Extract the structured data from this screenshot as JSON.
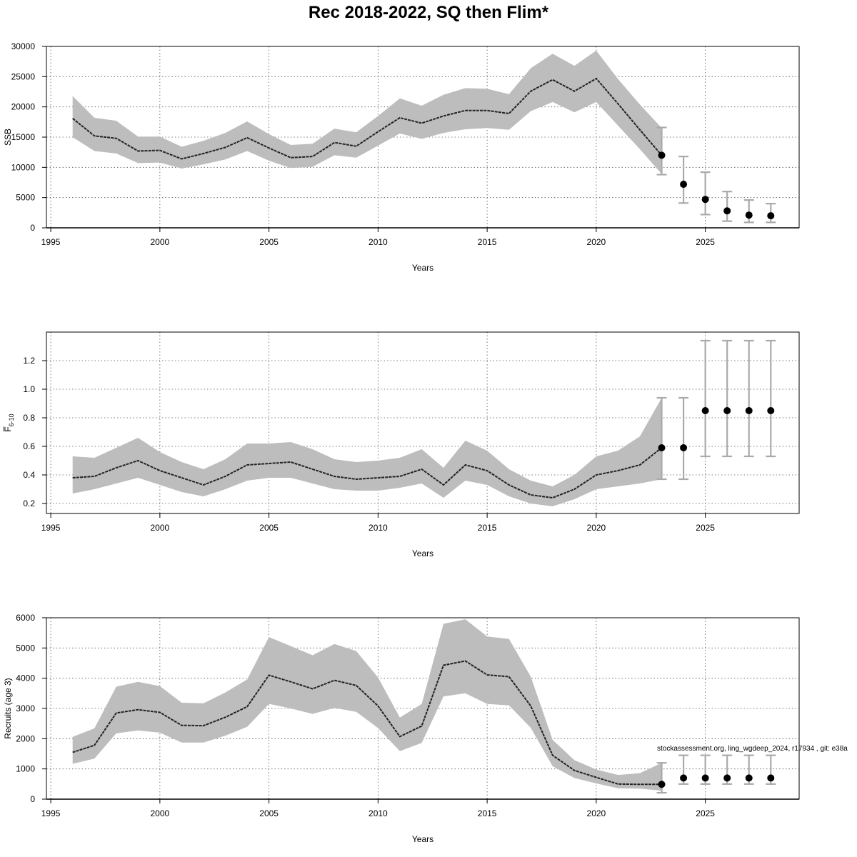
{
  "title": "Rec 2018-2022, SQ then Flim*",
  "annotation": "stockassessment.org, ling_wgdeep_2024, r17934 , git: e38a",
  "colors": {
    "band": "#bdbdbd",
    "line": "#222222",
    "errbar": "#aaaaaa",
    "point": "#000000"
  },
  "chart_data": [
    {
      "type": "line",
      "name": "ssb",
      "xlabel": "Years",
      "ylabel": "SSB",
      "xlim": [
        1994.8,
        2029.3
      ],
      "ylim": [
        0,
        30000
      ],
      "xticks": [
        1995,
        2000,
        2005,
        2010,
        2015,
        2020,
        2025
      ],
      "yticks": [
        0,
        5000,
        10000,
        15000,
        20000,
        25000,
        30000
      ],
      "grid": true,
      "baseline": true,
      "years": [
        1996,
        1997,
        1998,
        1999,
        2000,
        2001,
        2002,
        2003,
        2004,
        2005,
        2006,
        2007,
        2008,
        2009,
        2010,
        2011,
        2012,
        2013,
        2014,
        2015,
        2016,
        2017,
        2018,
        2019,
        2020,
        2021,
        2022,
        2023
      ],
      "estimate": [
        18100,
        15200,
        14800,
        12700,
        12800,
        11400,
        12300,
        13300,
        14900,
        13200,
        11600,
        11800,
        14100,
        13500,
        15900,
        18200,
        17300,
        18500,
        19400,
        19400,
        18900,
        22600,
        24500,
        22600,
        24700,
        20500,
        16200,
        12000
      ],
      "lower": [
        15000,
        12700,
        12300,
        10700,
        10800,
        9800,
        10500,
        11300,
        12700,
        11100,
        9900,
        10100,
        12000,
        11600,
        13600,
        15600,
        14700,
        15700,
        16300,
        16500,
        16200,
        19300,
        20800,
        19100,
        20800,
        16900,
        13000,
        8900
      ],
      "upper": [
        21800,
        18200,
        17700,
        15100,
        15100,
        13400,
        14400,
        15700,
        17600,
        15500,
        13700,
        13900,
        16400,
        15800,
        18500,
        21400,
        20200,
        22000,
        23100,
        23000,
        22100,
        26400,
        28800,
        26800,
        29300,
        24600,
        20400,
        16500
      ],
      "forecast": {
        "years": [
          2023,
          2024,
          2025,
          2026,
          2027,
          2028
        ],
        "median": [
          12000,
          7200,
          4700,
          2800,
          2100,
          2000
        ],
        "lower": [
          8800,
          4100,
          2200,
          1100,
          900,
          900
        ],
        "upper": [
          16600,
          11800,
          9200,
          6000,
          4600,
          4000
        ]
      }
    },
    {
      "type": "line",
      "name": "fbar",
      "xlabel": "Years",
      "ylabel": "F̅6-10",
      "ylabel_main": "F̅",
      "ylabel_sub": "6-10",
      "xlim": [
        1994.8,
        2029.3
      ],
      "ylim": [
        0.13,
        1.4
      ],
      "xticks": [
        1995,
        2000,
        2005,
        2010,
        2015,
        2020,
        2025
      ],
      "yticks": [
        0.2,
        0.4,
        0.6,
        0.8,
        1.0,
        1.2
      ],
      "ytick_labels": [
        "0.2",
        "0.4",
        "0.6",
        "0.8",
        "1.0",
        "1.2"
      ],
      "grid": true,
      "baseline": false,
      "years": [
        1996,
        1997,
        1998,
        1999,
        2000,
        2001,
        2002,
        2003,
        2004,
        2005,
        2006,
        2007,
        2008,
        2009,
        2010,
        2011,
        2012,
        2013,
        2014,
        2015,
        2016,
        2017,
        2018,
        2019,
        2020,
        2021,
        2022,
        2023
      ],
      "estimate": [
        0.38,
        0.39,
        0.45,
        0.5,
        0.43,
        0.38,
        0.33,
        0.39,
        0.47,
        0.48,
        0.49,
        0.44,
        0.39,
        0.37,
        0.38,
        0.39,
        0.44,
        0.33,
        0.47,
        0.43,
        0.33,
        0.26,
        0.24,
        0.3,
        0.4,
        0.43,
        0.47,
        0.59
      ],
      "lower": [
        0.27,
        0.3,
        0.34,
        0.38,
        0.33,
        0.28,
        0.25,
        0.3,
        0.36,
        0.38,
        0.38,
        0.34,
        0.3,
        0.29,
        0.29,
        0.31,
        0.34,
        0.24,
        0.36,
        0.33,
        0.25,
        0.2,
        0.18,
        0.23,
        0.3,
        0.32,
        0.34,
        0.37
      ],
      "upper": [
        0.53,
        0.52,
        0.59,
        0.66,
        0.56,
        0.49,
        0.44,
        0.51,
        0.62,
        0.62,
        0.63,
        0.58,
        0.51,
        0.49,
        0.5,
        0.52,
        0.58,
        0.45,
        0.64,
        0.57,
        0.44,
        0.36,
        0.32,
        0.4,
        0.53,
        0.57,
        0.67,
        0.94
      ],
      "forecast": {
        "years": [
          2023,
          2024,
          2025,
          2026,
          2027,
          2028
        ],
        "median": [
          0.59,
          0.59,
          0.85,
          0.85,
          0.85,
          0.85
        ],
        "lower": [
          0.37,
          0.37,
          0.53,
          0.53,
          0.53,
          0.53
        ],
        "upper": [
          0.94,
          0.94,
          1.34,
          1.34,
          1.34,
          1.34
        ]
      }
    },
    {
      "type": "line",
      "name": "recruits",
      "xlabel": "Years",
      "ylabel": "Recruits (age 3)",
      "xlim": [
        1994.8,
        2029.3
      ],
      "ylim": [
        0,
        6000
      ],
      "xticks": [
        1995,
        2000,
        2005,
        2010,
        2015,
        2020,
        2025
      ],
      "yticks": [
        0,
        1000,
        2000,
        3000,
        4000,
        5000,
        6000
      ],
      "grid": true,
      "baseline": true,
      "years": [
        1996,
        1997,
        1998,
        1999,
        2000,
        2001,
        2002,
        2003,
        2004,
        2005,
        2006,
        2007,
        2008,
        2009,
        2010,
        2011,
        2012,
        2013,
        2014,
        2015,
        2016,
        2017,
        2018,
        2019,
        2020,
        2021,
        2022,
        2023
      ],
      "estimate": [
        1550,
        1780,
        2850,
        2960,
        2870,
        2440,
        2430,
        2710,
        3060,
        4100,
        3880,
        3650,
        3930,
        3760,
        3080,
        2070,
        2420,
        4430,
        4570,
        4110,
        4050,
        3080,
        1450,
        950,
        720,
        500,
        490,
        490
      ],
      "lower": [
        1170,
        1340,
        2180,
        2270,
        2200,
        1870,
        1870,
        2100,
        2390,
        3150,
        3000,
        2820,
        3020,
        2890,
        2350,
        1590,
        1860,
        3400,
        3500,
        3150,
        3100,
        2360,
        1090,
        700,
        520,
        360,
        350,
        280
      ],
      "upper": [
        2060,
        2340,
        3720,
        3880,
        3740,
        3190,
        3170,
        3530,
        3960,
        5360,
        5060,
        4760,
        5130,
        4900,
        4020,
        2700,
        3150,
        5800,
        5950,
        5380,
        5300,
        4050,
        1960,
        1290,
        980,
        800,
        860,
        1200
      ],
      "forecast": {
        "years": [
          2023,
          2024,
          2025,
          2026,
          2027,
          2028
        ],
        "median": [
          490,
          700,
          700,
          700,
          700,
          700
        ],
        "lower": [
          210,
          500,
          500,
          500,
          500,
          500
        ],
        "upper": [
          1200,
          1450,
          1450,
          1450,
          1450,
          1450
        ]
      }
    }
  ]
}
